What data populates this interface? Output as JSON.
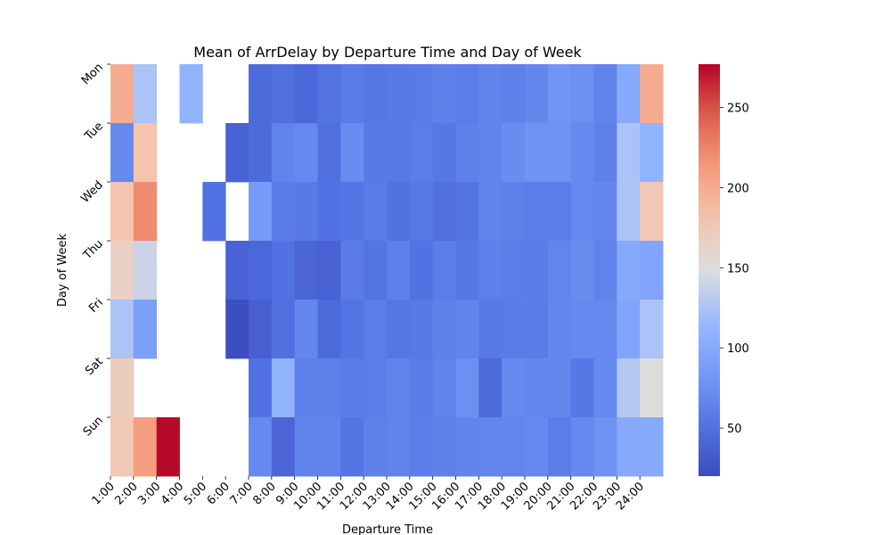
{
  "chart_data": {
    "type": "heatmap",
    "title": "Mean of ArrDelay by Departure Time and Day of Week",
    "xlabel": "Departure Time",
    "ylabel": "Day of Week",
    "x": [
      "1:00",
      "2:00",
      "3:00",
      "4:00",
      "5:00",
      "6:00",
      "7:00",
      "8:00",
      "9:00",
      "10:00",
      "11:00",
      "12:00",
      "13:00",
      "14:00",
      "15:00",
      "16:00",
      "17:00",
      "18:00",
      "19:00",
      "20:00",
      "21:00",
      "22:00",
      "23:00",
      "24:00"
    ],
    "y": [
      "Mon",
      "Tue",
      "Wed",
      "Thu",
      "Fri",
      "Sat",
      "Sun"
    ],
    "values": [
      [
        200,
        125,
        null,
        110,
        null,
        null,
        45,
        48,
        42,
        52,
        58,
        55,
        56,
        57,
        62,
        60,
        65,
        62,
        68,
        80,
        75,
        65,
        100,
        200
      ],
      [
        70,
        180,
        null,
        null,
        null,
        38,
        45,
        65,
        70,
        48,
        72,
        56,
        56,
        60,
        55,
        62,
        65,
        72,
        78,
        78,
        70,
        62,
        125,
        110
      ],
      [
        180,
        220,
        null,
        null,
        50,
        null,
        85,
        58,
        56,
        50,
        52,
        58,
        50,
        56,
        48,
        52,
        64,
        62,
        60,
        60,
        70,
        68,
        125,
        175
      ],
      [
        165,
        140,
        null,
        null,
        null,
        38,
        42,
        50,
        40,
        38,
        58,
        52,
        62,
        50,
        60,
        55,
        62,
        60,
        58,
        66,
        72,
        64,
        100,
        95
      ],
      [
        125,
        90,
        null,
        null,
        null,
        22,
        35,
        48,
        68,
        45,
        52,
        60,
        54,
        56,
        62,
        65,
        56,
        58,
        58,
        68,
        70,
        70,
        95,
        125
      ],
      [
        170,
        null,
        null,
        null,
        null,
        null,
        50,
        110,
        62,
        62,
        58,
        60,
        64,
        58,
        65,
        75,
        45,
        70,
        68,
        68,
        55,
        70,
        130,
        150
      ],
      [
        175,
        210,
        275,
        null,
        null,
        null,
        70,
        40,
        65,
        65,
        52,
        62,
        64,
        60,
        62,
        65,
        66,
        66,
        70,
        60,
        70,
        78,
        100,
        100
      ]
    ],
    "zlim": [
      20,
      277
    ],
    "colorbar": {
      "ticks": [
        50,
        100,
        150,
        200,
        250
      ]
    },
    "colormap": "coolwarm",
    "grid": false
  }
}
